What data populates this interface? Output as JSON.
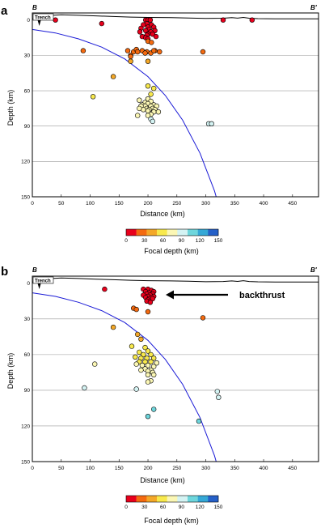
{
  "panels": [
    {
      "letter": "a",
      "profile_start": "B",
      "profile_end": "B'",
      "trench_label": "Trench",
      "annotation": "",
      "xlabel": "Distance (km)",
      "ylabel": "Depth (km)",
      "colorbar_label": "Focal depth (km)"
    },
    {
      "letter": "b",
      "profile_start": "B",
      "profile_end": "B'",
      "trench_label": "Trench",
      "annotation": "backthrust",
      "xlabel": "Distance (km)",
      "ylabel": "Depth (km)",
      "colorbar_label": "Focal depth (km)"
    }
  ],
  "colorbar": {
    "ticks": [
      "0",
      "30",
      "60",
      "90",
      "120",
      "150"
    ],
    "colors": [
      "#e8001c",
      "#f46a10",
      "#f4a828",
      "#f8e94c",
      "#fbf7b5",
      "#d4f3f3",
      "#6ed6dc",
      "#35a8d6",
      "#2560c8"
    ]
  },
  "chart_data": [
    {
      "type": "scatter",
      "title": "",
      "xlabel": "Distance (km)",
      "ylabel": "Depth (km)",
      "xlim": [
        0,
        495
      ],
      "ylim": [
        150,
        -6
      ],
      "x_ticks": [
        0,
        50,
        100,
        150,
        200,
        250,
        300,
        350,
        400,
        450
      ],
      "y_ticks": [
        0,
        30,
        60,
        90,
        120,
        150
      ],
      "grid": "horizontal",
      "topography": [
        [
          0,
          -1
        ],
        [
          10,
          -1.5
        ],
        [
          20,
          -3
        ],
        [
          35,
          -4
        ],
        [
          50,
          -4.5
        ],
        [
          80,
          -4
        ],
        [
          110,
          -3.5
        ],
        [
          140,
          -3
        ],
        [
          170,
          -2.5
        ],
        [
          200,
          -2.2
        ],
        [
          240,
          -2
        ],
        [
          270,
          -1.7
        ],
        [
          300,
          -1.3
        ],
        [
          330,
          -1.5
        ],
        [
          345,
          -2
        ],
        [
          355,
          -1.6
        ],
        [
          365,
          -2.2
        ],
        [
          375,
          -1.5
        ],
        [
          390,
          -1.2
        ],
        [
          420,
          -1
        ],
        [
          460,
          -1
        ],
        [
          495,
          -1
        ]
      ],
      "slab_interface": [
        [
          0,
          8
        ],
        [
          40,
          11
        ],
        [
          80,
          16
        ],
        [
          120,
          23
        ],
        [
          160,
          33
        ],
        [
          200,
          48
        ],
        [
          230,
          64
        ],
        [
          260,
          85
        ],
        [
          290,
          113
        ],
        [
          315,
          145
        ],
        [
          318,
          150
        ]
      ],
      "x": [
        40,
        120,
        196,
        200,
        204,
        198,
        192,
        206,
        200,
        210,
        188,
        202,
        196,
        212,
        205,
        186,
        200,
        208,
        198,
        190,
        214,
        196,
        200,
        330,
        380,
        200,
        206,
        88,
        165,
        175,
        180,
        190,
        198,
        205,
        212,
        220,
        170,
        182,
        195,
        210,
        295,
        200,
        170,
        170,
        140,
        105,
        200,
        210,
        205,
        200,
        185,
        195,
        205,
        190,
        200,
        210,
        195,
        205,
        215,
        188,
        198,
        208,
        192,
        202,
        212,
        218,
        185,
        200,
        210,
        205,
        200,
        182,
        205,
        208,
        305,
        310
      ],
      "y": [
        0,
        3,
        0,
        0,
        0,
        3,
        4,
        4,
        6,
        6,
        7,
        8,
        9,
        9,
        10,
        10,
        12,
        12,
        13,
        14,
        14,
        15,
        16,
        0,
        0,
        18,
        19,
        26,
        26,
        27,
        25,
        26,
        27,
        28,
        26,
        27,
        30,
        27,
        28,
        26,
        27,
        35,
        31,
        35,
        48,
        65,
        56,
        58,
        63,
        67,
        68,
        70,
        69,
        72,
        71,
        72,
        73,
        73,
        73,
        73,
        75,
        75,
        76,
        76,
        76,
        78,
        75,
        77,
        78,
        80,
        81,
        81,
        84,
        86,
        88,
        88
      ]
    },
    {
      "type": "scatter",
      "title": "",
      "xlabel": "Distance (km)",
      "ylabel": "Depth (km)",
      "xlim": [
        0,
        495
      ],
      "ylim": [
        150,
        -6
      ],
      "x_ticks": [
        0,
        50,
        100,
        150,
        200,
        250,
        300,
        350,
        400,
        450
      ],
      "y_ticks": [
        0,
        30,
        60,
        90,
        120,
        150
      ],
      "grid": "horizontal",
      "topography": [
        [
          0,
          -1
        ],
        [
          10,
          -1.5
        ],
        [
          20,
          -3
        ],
        [
          35,
          -4
        ],
        [
          50,
          -4.5
        ],
        [
          80,
          -4
        ],
        [
          110,
          -3.5
        ],
        [
          140,
          -3
        ],
        [
          170,
          -2.5
        ],
        [
          200,
          -2.2
        ],
        [
          240,
          -2
        ],
        [
          270,
          -1.7
        ],
        [
          300,
          -1.3
        ],
        [
          330,
          -1.5
        ],
        [
          345,
          -2
        ],
        [
          355,
          -1.6
        ],
        [
          365,
          -2.2
        ],
        [
          375,
          -1.5
        ],
        [
          390,
          -1.2
        ],
        [
          420,
          -1
        ],
        [
          460,
          -1
        ],
        [
          495,
          -1
        ]
      ],
      "slab_interface": [
        [
          0,
          8
        ],
        [
          40,
          11
        ],
        [
          80,
          16
        ],
        [
          120,
          23
        ],
        [
          160,
          33
        ],
        [
          200,
          48
        ],
        [
          230,
          64
        ],
        [
          260,
          85
        ],
        [
          290,
          113
        ],
        [
          315,
          145
        ],
        [
          318,
          150
        ]
      ],
      "x": [
        125,
        192,
        200,
        206,
        196,
        210,
        202,
        198,
        208,
        204,
        192,
        200,
        210,
        196,
        206,
        202,
        208,
        200,
        198,
        204,
        175,
        180,
        200,
        295,
        140,
        182,
        188,
        172,
        195,
        200,
        185,
        192,
        205,
        178,
        188,
        198,
        210,
        185,
        195,
        205,
        215,
        190,
        200,
        210,
        195,
        205,
        200,
        208,
        108,
        180,
        188,
        200,
        210,
        205,
        200,
        90,
        180,
        320,
        322,
        210,
        200,
        288
      ],
      "y": [
        5,
        5,
        5,
        6,
        7,
        7,
        8,
        9,
        9,
        10,
        10,
        11,
        11,
        12,
        12,
        13,
        13,
        14,
        15,
        16,
        21,
        22,
        24,
        29,
        37,
        43,
        47,
        53,
        54,
        57,
        58,
        60,
        60,
        62,
        63,
        63,
        63,
        66,
        66,
        66,
        67,
        69,
        69,
        70,
        72,
        73,
        74,
        75,
        68,
        68,
        73,
        77,
        77,
        82,
        83,
        88,
        89,
        91,
        96,
        106,
        112,
        116
      ]
    }
  ]
}
